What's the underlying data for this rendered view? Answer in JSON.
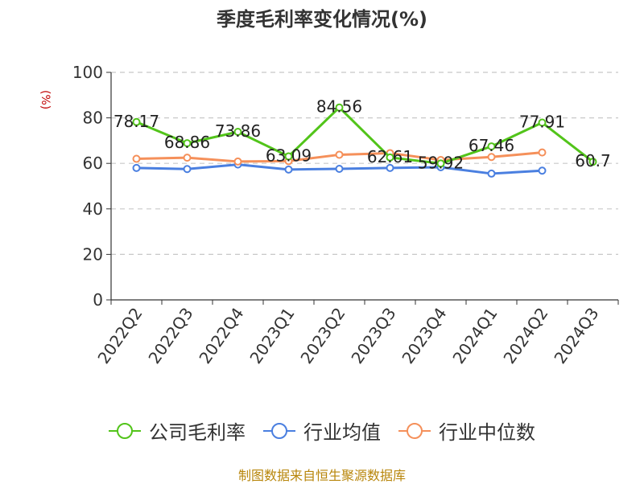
{
  "chart_data": {
    "type": "line",
    "title": "季度毛利率变化情况(%)",
    "ylabel": "(%)",
    "xlabel": "",
    "categories": [
      "2022Q2",
      "2022Q3",
      "2022Q4",
      "2023Q1",
      "2023Q2",
      "2023Q3",
      "2023Q4",
      "2024Q1",
      "2024Q2",
      "2024Q3"
    ],
    "ylim": [
      0,
      100
    ],
    "yticks": [
      0,
      20,
      40,
      60,
      80,
      100
    ],
    "grid": true,
    "legend_position": "bottom",
    "series": [
      {
        "name": "公司毛利率",
        "color": "#52c41a",
        "values": [
          78.17,
          68.86,
          73.86,
          63.09,
          84.56,
          62.61,
          59.92,
          67.46,
          77.91,
          60.7
        ],
        "labels": [
          "78.17",
          "68.86",
          "73.86",
          "63.09",
          "84.56",
          "62.61",
          "59.92",
          "67.46",
          "77.91",
          "60.7"
        ]
      },
      {
        "name": "行业均值",
        "color": "#4a7fe0",
        "values": [
          58.0,
          57.5,
          59.5,
          57.3,
          57.6,
          58.0,
          58.3,
          55.5,
          56.8,
          null
        ]
      },
      {
        "name": "行业中位数",
        "color": "#f5905a",
        "values": [
          62.0,
          62.5,
          60.8,
          61.0,
          63.8,
          64.5,
          61.5,
          62.8,
          64.8,
          null
        ]
      }
    ]
  },
  "footer": {
    "source": "制图数据来自恒生聚源数据库"
  }
}
